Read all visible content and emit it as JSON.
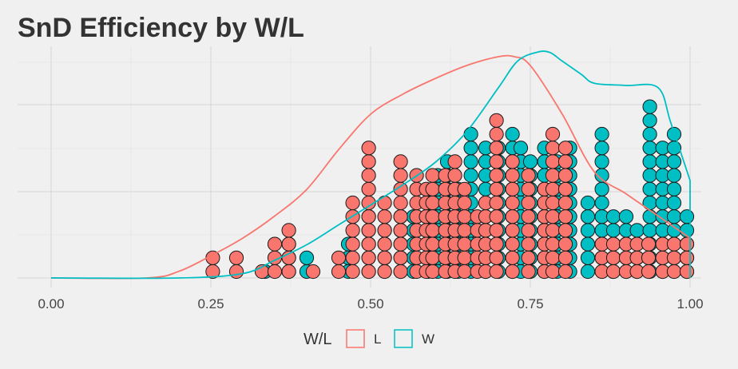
{
  "chart_data": {
    "type": "dotplot",
    "title": "SnD Efficiency by W/L",
    "xlabel": "",
    "ylabel": "",
    "xlim": [
      0,
      1
    ],
    "x_ticks": [
      "0.00",
      "0.25",
      "0.50",
      "0.75",
      "1.00"
    ],
    "x_tick_values": [
      0,
      0.25,
      0.5,
      0.75,
      1.0
    ],
    "grid": true,
    "legend": {
      "title": "W/L",
      "position": "bottom",
      "entries": [
        {
          "label": "L",
          "color": "#F8766D"
        },
        {
          "label": "W",
          "color": "#00BFC4"
        }
      ]
    },
    "series": [
      {
        "name": "L",
        "color": "#F8766D",
        "stacks": [
          {
            "x": 0.253,
            "count": 2
          },
          {
            "x": 0.29,
            "count": 2
          },
          {
            "x": 0.33,
            "count": 1
          },
          {
            "x": 0.35,
            "count": 3
          },
          {
            "x": 0.372,
            "count": 4
          },
          {
            "x": 0.41,
            "count": 1
          },
          {
            "x": 0.45,
            "count": 2
          },
          {
            "x": 0.472,
            "count": 6
          },
          {
            "x": 0.497,
            "count": 10
          },
          {
            "x": 0.522,
            "count": 6
          },
          {
            "x": 0.547,
            "count": 9
          },
          {
            "x": 0.572,
            "count": 8
          },
          {
            "x": 0.587,
            "count": 7
          },
          {
            "x": 0.597,
            "count": 8
          },
          {
            "x": 0.617,
            "count": 8
          },
          {
            "x": 0.632,
            "count": 9
          },
          {
            "x": 0.647,
            "count": 7
          },
          {
            "x": 0.667,
            "count": 5
          },
          {
            "x": 0.68,
            "count": 6
          },
          {
            "x": 0.697,
            "count": 12
          },
          {
            "x": 0.722,
            "count": 9
          },
          {
            "x": 0.747,
            "count": 8
          },
          {
            "x": 0.772,
            "count": 7
          },
          {
            "x": 0.785,
            "count": 11
          },
          {
            "x": 0.805,
            "count": 10
          },
          {
            "x": 0.862,
            "count": 3
          },
          {
            "x": 0.88,
            "count": 3
          },
          {
            "x": 0.9,
            "count": 3
          },
          {
            "x": 0.917,
            "count": 3
          },
          {
            "x": 0.935,
            "count": 3
          },
          {
            "x": 0.957,
            "count": 3
          },
          {
            "x": 0.975,
            "count": 3
          },
          {
            "x": 0.995,
            "count": 3
          }
        ]
      },
      {
        "name": "W",
        "color": "#00BFC4",
        "stacks": [
          {
            "x": 0.335,
            "count": 1
          },
          {
            "x": 0.372,
            "count": 3
          },
          {
            "x": 0.4,
            "count": 2
          },
          {
            "x": 0.465,
            "count": 3
          },
          {
            "x": 0.497,
            "count": 5
          },
          {
            "x": 0.522,
            "count": 4
          },
          {
            "x": 0.547,
            "count": 5
          },
          {
            "x": 0.567,
            "count": 5
          },
          {
            "x": 0.59,
            "count": 6
          },
          {
            "x": 0.605,
            "count": 8
          },
          {
            "x": 0.62,
            "count": 9
          },
          {
            "x": 0.637,
            "count": 7
          },
          {
            "x": 0.657,
            "count": 11
          },
          {
            "x": 0.68,
            "count": 10
          },
          {
            "x": 0.7,
            "count": 10
          },
          {
            "x": 0.722,
            "count": 11
          },
          {
            "x": 0.735,
            "count": 10
          },
          {
            "x": 0.75,
            "count": 9
          },
          {
            "x": 0.772,
            "count": 10
          },
          {
            "x": 0.792,
            "count": 9
          },
          {
            "x": 0.812,
            "count": 10
          },
          {
            "x": 0.84,
            "count": 6
          },
          {
            "x": 0.862,
            "count": 11
          },
          {
            "x": 0.88,
            "count": 5
          },
          {
            "x": 0.9,
            "count": 5
          },
          {
            "x": 0.917,
            "count": 4
          },
          {
            "x": 0.937,
            "count": 13
          },
          {
            "x": 0.957,
            "count": 10
          },
          {
            "x": 0.975,
            "count": 11
          },
          {
            "x": 0.995,
            "count": 5
          }
        ]
      }
    ],
    "density": [
      {
        "name": "L",
        "color": "#F8766D",
        "x": [
          0.0,
          0.15,
          0.2,
          0.25,
          0.3,
          0.35,
          0.4,
          0.45,
          0.5,
          0.55,
          0.6,
          0.65,
          0.7,
          0.725,
          0.75,
          0.8,
          0.85,
          0.9,
          0.95,
          1.0
        ],
        "y": [
          0.0,
          0.0,
          0.03,
          0.1,
          0.18,
          0.28,
          0.4,
          0.58,
          0.74,
          0.83,
          0.9,
          0.96,
          1.0,
          1.0,
          0.96,
          0.74,
          0.48,
          0.38,
          0.28,
          0.18
        ]
      },
      {
        "name": "W",
        "color": "#00BFC4",
        "x": [
          0.0,
          0.2,
          0.3,
          0.35,
          0.4,
          0.45,
          0.5,
          0.55,
          0.6,
          0.65,
          0.7,
          0.73,
          0.76,
          0.78,
          0.8,
          0.83,
          0.85,
          0.9,
          0.95,
          0.97,
          1.0
        ],
        "y": [
          0.0,
          0.0,
          0.02,
          0.08,
          0.15,
          0.24,
          0.33,
          0.42,
          0.52,
          0.66,
          0.86,
          0.98,
          1.02,
          1.02,
          0.98,
          0.92,
          0.88,
          0.87,
          0.86,
          0.7,
          0.44
        ]
      }
    ]
  }
}
